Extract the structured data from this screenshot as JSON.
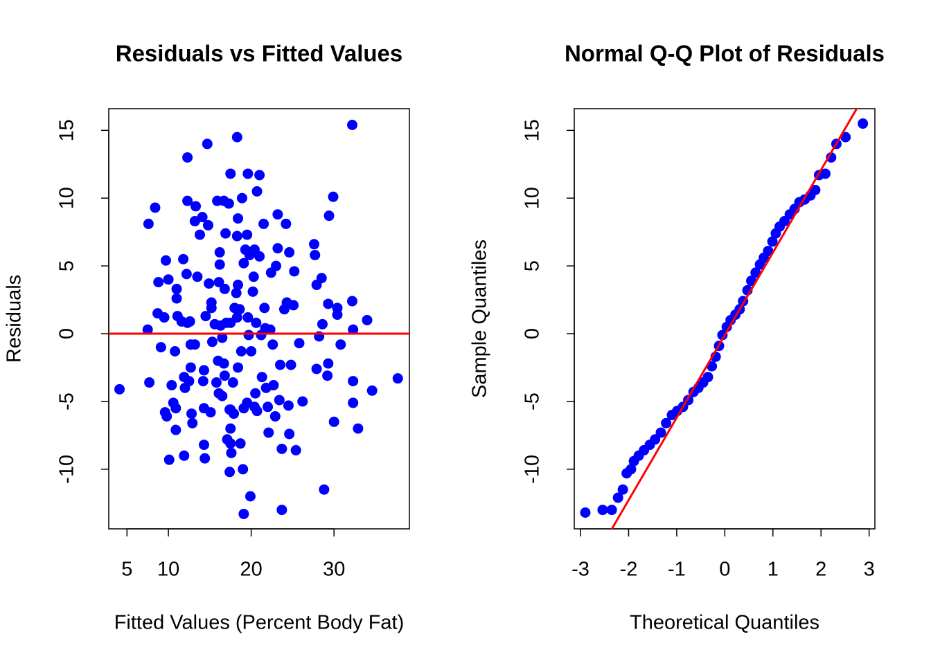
{
  "chart_data": [
    {
      "type": "scatter",
      "title": "Residuals vs Fitted Values",
      "xlabel": "Fitted Values (Percent Body Fat)",
      "ylabel": "Residuals",
      "color": "#0000ff",
      "xlim": [
        2.8,
        39.1
      ],
      "ylim": [
        -14.4,
        16.6
      ],
      "xticks": [
        5,
        10,
        20,
        30
      ],
      "yticks": [
        -10,
        -5,
        0,
        5,
        10,
        15
      ],
      "line": {
        "intercept": 0,
        "slope": 0,
        "color": "#ff0000"
      },
      "x": [
        4.1,
        7.5,
        7.6,
        7.7,
        8.4,
        8.8,
        8.7,
        9.1,
        9.6,
        9.7,
        9.8,
        10.0,
        9.5,
        10.1,
        10.4,
        10.6,
        10.8,
        10.9,
        11.0,
        11.0,
        10.9,
        11.1,
        11.6,
        11.8,
        11.9,
        11.9,
        12.0,
        12.2,
        12.3,
        12.3,
        12.3,
        12.6,
        12.5,
        12.7,
        12.7,
        12.8,
        12.9,
        13.2,
        13.2,
        13.3,
        13.5,
        13.8,
        14.1,
        14.2,
        14.3,
        14.3,
        14.3,
        14.4,
        14.5,
        14.7,
        14.8,
        14.9,
        15.1,
        15.2,
        15.2,
        15.3,
        15.6,
        15.8,
        15.9,
        16.0,
        16.1,
        16.1,
        16.2,
        16.2,
        16.3,
        16.5,
        16.5,
        16.7,
        16.7,
        16.8,
        16.8,
        16.9,
        17.0,
        17.1,
        17.3,
        17.4,
        17.5,
        17.4,
        17.5,
        17.5,
        17.5,
        17.5,
        17.6,
        17.8,
        17.9,
        18.0,
        18.2,
        18.3,
        18.3,
        18.3,
        18.4,
        18.4,
        18.4,
        18.6,
        18.7,
        18.8,
        18.9,
        19.0,
        19.1,
        19.1,
        19.1,
        19.3,
        19.5,
        19.5,
        19.6,
        19.6,
        19.7,
        19.8,
        19.9,
        20.0,
        20.2,
        20.3,
        20.4,
        20.4,
        20.5,
        20.6,
        20.7,
        20.7,
        21.0,
        21.0,
        21.2,
        21.3,
        21.5,
        21.6,
        21.7,
        21.8,
        22.0,
        22.1,
        22.3,
        22.4,
        22.6,
        22.7,
        22.9,
        23.0,
        23.2,
        23.2,
        23.4,
        23.5,
        23.7,
        23.7,
        24.0,
        24.2,
        24.3,
        24.5,
        24.6,
        24.6,
        24.8,
        25.1,
        25.2,
        25.4,
        25.8,
        26.2,
        27.6,
        27.7,
        27.9,
        27.9,
        28.2,
        28.5,
        28.6,
        28.8,
        29.2,
        29.3,
        29.3,
        29.4,
        29.9,
        30.4,
        30.4,
        30.0,
        30.8,
        32.2,
        32.2,
        32.3,
        32.3,
        32.3,
        32.9,
        34.0,
        34.6,
        37.7
      ],
      "y": [
        -4.1,
        0.3,
        8.1,
        -3.6,
        9.3,
        3.8,
        1.5,
        -1.0,
        -5.8,
        5.4,
        -6.1,
        4.0,
        1.2,
        -9.3,
        -3.8,
        -5.1,
        -1.3,
        -5.5,
        3.3,
        2.6,
        -7.1,
        1.3,
        0.9,
        5.5,
        -3.2,
        -9.0,
        -4.0,
        4.4,
        13.0,
        9.8,
        0.8,
        0.9,
        -3.5,
        -2.5,
        -0.8,
        -5.9,
        -6.6,
        -0.8,
        8.3,
        9.4,
        4.2,
        7.3,
        8.6,
        -3.5,
        -2.7,
        -5.5,
        -8.2,
        -9.2,
        1.3,
        14.0,
        8.0,
        3.7,
        -5.8,
        1.9,
        2.3,
        -0.6,
        0.7,
        -3.6,
        9.8,
        -2.0,
        3.8,
        -4.4,
        6.0,
        5.1,
        0.6,
        -0.3,
        -4.6,
        9.8,
        -2.2,
        -3.1,
        3.3,
        7.4,
        0.8,
        -7.8,
        9.6,
        -5.6,
        -5.6,
        -10.2,
        -8.1,
        -7.0,
        0.8,
        11.8,
        -8.8,
        -3.6,
        -5.9,
        1.9,
        3.0,
        14.5,
        1.2,
        7.2,
        8.5,
        3.6,
        -2.5,
        1.8,
        -8.1,
        -1.3,
        10.0,
        -10.0,
        5.2,
        -5.5,
        -13.3,
        6.2,
        -5.1,
        7.3,
        1.2,
        11.8,
        -0.1,
        5.8,
        -12.0,
        -1.3,
        3.1,
        4.2,
        6.2,
        -5.4,
        -4.4,
        0.8,
        10.5,
        -5.7,
        5.7,
        11.7,
        -0.1,
        -3.2,
        8.1,
        1.9,
        0.4,
        -4.0,
        -5.4,
        -7.3,
        0.3,
        4.5,
        -0.8,
        -3.8,
        -6.1,
        5.0,
        8.8,
        6.3,
        -4.9,
        -2.3,
        -8.5,
        -13.0,
        1.8,
        8.1,
        2.3,
        -5.3,
        6.0,
        -7.4,
        -2.3,
        2.1,
        4.6,
        -8.6,
        -0.7,
        -5.0,
        6.6,
        5.8,
        3.6,
        -2.6,
        -0.2,
        4.1,
        0.7,
        -11.5,
        -3.1,
        -2.2,
        2.2,
        8.7,
        10.1,
        1.9,
        1.4,
        -6.5,
        -0.8,
        15.4,
        2.4,
        0.3,
        -3.5,
        -5.1,
        -7.0,
        1.0,
        -4.2,
        -3.3
      ]
    },
    {
      "type": "scatter",
      "title": "Normal Q-Q Plot of Residuals",
      "xlabel": "Theoretical Quantiles",
      "ylabel": "Sample Quantiles",
      "color": "#0000ff",
      "xlim": [
        -3.13,
        3.12
      ],
      "ylim": [
        -14.4,
        16.6
      ],
      "xticks": [
        -3,
        -2,
        -1,
        0,
        1,
        2,
        3
      ],
      "yticks": [
        -10,
        -5,
        0,
        5,
        10,
        15
      ],
      "line": {
        "intercept": -0.1,
        "slope": 6.09,
        "color": "#ff0000"
      },
      "x": [
        -2.9,
        -2.54,
        -2.35,
        -2.22,
        -2.12,
        -2.04,
        -1.95,
        -1.89,
        -1.79,
        -1.68,
        -1.56,
        -1.45,
        -1.33,
        -1.22,
        -1.1,
        -0.99,
        -0.87,
        -0.76,
        -0.65,
        -0.55,
        -0.45,
        -0.35,
        -0.27,
        -0.19,
        -0.12,
        -0.05,
        0.04,
        0.12,
        0.22,
        0.31,
        0.38,
        0.47,
        0.55,
        0.64,
        0.73,
        0.81,
        0.9,
        0.99,
        1.06,
        1.14,
        1.24,
        1.35,
        1.45,
        1.55,
        1.66,
        1.78,
        1.88,
        1.96,
        2.09,
        2.21,
        2.32,
        2.51,
        2.87
      ],
      "y": [
        -13.2,
        -13.0,
        -13.0,
        -12.1,
        -11.5,
        -10.3,
        -10.0,
        -9.4,
        -9.0,
        -8.6,
        -8.2,
        -7.8,
        -7.3,
        -6.6,
        -6.0,
        -5.7,
        -5.4,
        -4.9,
        -4.3,
        -4.0,
        -3.6,
        -3.2,
        -2.4,
        -1.7,
        -0.9,
        -0.1,
        0.5,
        1.0,
        1.4,
        1.8,
        2.4,
        3.2,
        3.9,
        4.5,
        5.1,
        5.6,
        6.1,
        6.8,
        7.4,
        7.9,
        8.3,
        8.8,
        9.2,
        9.7,
        9.9,
        10.2,
        10.6,
        11.7,
        11.8,
        13.0,
        14.0,
        14.5,
        15.5
      ]
    }
  ]
}
